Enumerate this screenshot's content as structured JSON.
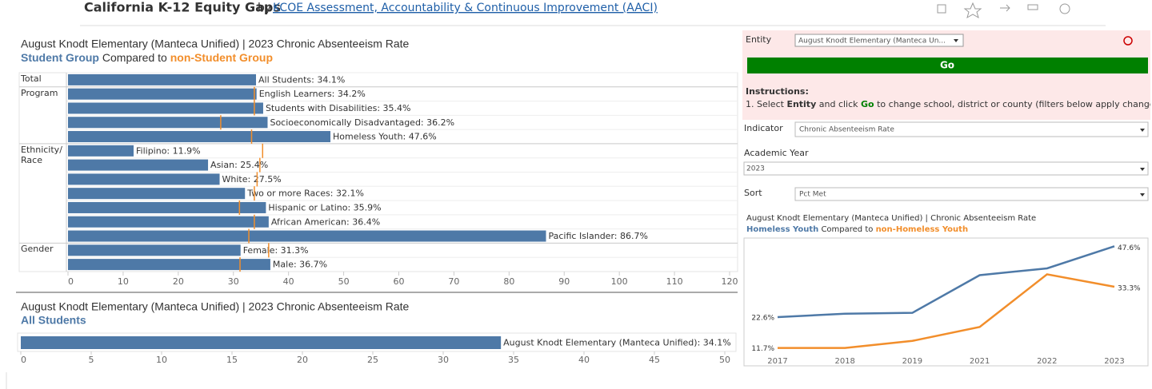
{
  "header": {
    "title": "California K-12 Equity Gaps",
    "by": "by",
    "source": "KCOE Assessment, Accountability & Continuous Improvement (AACI)"
  },
  "controls": {
    "entity_label": "Entity",
    "entity_value": "August Knodt Elementary (Manteca Un...",
    "go": "Go",
    "instructions_title": "Instructions:",
    "instructions": [
      "1. Select ",
      "Entity",
      " and click ",
      "Go",
      " to change school, district or county (filters below apply changes instantly)"
    ],
    "indicator_label": "Indicator",
    "indicator_value": "Chronic Absenteeism Rate",
    "year_label": "Academic Year",
    "year_value": "2023",
    "sort_label": "Sort",
    "sort_value": "Pct Met"
  },
  "chart_data": [
    {
      "type": "bar",
      "title": "August Knodt Elementary (Manteca Unified) | 2023 Chronic Absenteeism Rate",
      "compared_to": "Compared to",
      "row_groups": [
        "Total",
        "Program",
        null,
        null,
        null,
        "Ethnicity/ Race",
        null,
        null,
        null,
        null,
        null,
        null,
        "Gender",
        null
      ],
      "series": [
        {
          "name": "Student Group",
          "color": "#4e79a7",
          "values": [
            34.1,
            34.2,
            35.4,
            36.2,
            47.6,
            11.9,
            25.4,
            27.5,
            32.1,
            35.9,
            36.4,
            86.7,
            31.3,
            36.7
          ],
          "value_labels": [
            "All Students: 34.1%",
            "English Learners: 34.2%",
            "Students with Disabilities: 35.4%",
            "Socioeconomically Disadvantaged: 36.2%",
            "Homeless Youth: 47.6%",
            "Filipino: 11.9%",
            "Asian: 25.4%",
            "White: 27.5%",
            "Two or more Races: 32.1%",
            "Hispanic or Latino: 35.9%",
            "African American: 36.4%",
            "Pacific Islander: 86.7%",
            "Female: 31.3%",
            "Male: 36.7%"
          ]
        },
        {
          "name": "non-Student Group",
          "color": "#f28e2b",
          "values": [
            null,
            33.8,
            33.8,
            27.7,
            33.3,
            35.3,
            34.8,
            34.3,
            33.8,
            31.1,
            33.8,
            32.8,
            36.4,
            31.2
          ]
        }
      ],
      "xlim": [
        0,
        120
      ],
      "xticks": [
        0,
        10,
        20,
        30,
        40,
        50,
        60,
        70,
        80,
        90,
        100,
        110,
        120
      ]
    },
    {
      "type": "bar",
      "title": "August Knodt Elementary (Manteca Unified) | 2023 Chronic Absenteeism Rate",
      "subtitle": "All Students",
      "values": [
        34.1
      ],
      "value_labels": [
        "August Knodt Elementary (Manteca Unified): 34.1%"
      ],
      "color": "#4e79a7",
      "xlim": [
        0,
        50
      ],
      "xticks": [
        0,
        5,
        10,
        15,
        20,
        25,
        30,
        35,
        40,
        45,
        50
      ]
    },
    {
      "type": "line",
      "title": "August Knodt Elementary (Manteca Unified) | Chronic Absenteeism Rate",
      "compared_to": "Compared to",
      "categories": [
        "2017",
        "2018",
        "2019",
        "2021",
        "2022",
        "2023"
      ],
      "series": [
        {
          "name": "Homeless Youth",
          "color": "#4e79a7",
          "values": [
            22.6,
            23.8,
            24.1,
            37.4,
            39.8,
            47.6
          ],
          "value_labels": [
            "22.6%",
            null,
            null,
            null,
            null,
            "47.6%"
          ]
        },
        {
          "name": "non-Homeless Youth",
          "color": "#f28e2b",
          "values": [
            11.7,
            11.7,
            14.2,
            19.1,
            37.7,
            33.3
          ],
          "value_labels": [
            "11.7%",
            null,
            null,
            null,
            null,
            "33.3%"
          ]
        }
      ],
      "ylim": [
        5.4,
        50.5
      ]
    }
  ]
}
